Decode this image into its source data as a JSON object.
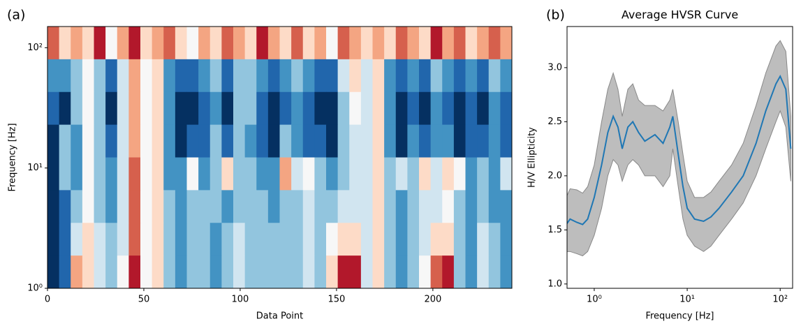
{
  "chart_data": [
    {
      "type": "heatmap",
      "panel_label": "(a)",
      "xlabel": "Data Point",
      "ylabel": "Frequency [Hz]",
      "xlim": [
        0,
        241
      ],
      "ylim": [
        1,
        150
      ],
      "log_y": true,
      "xticks": [
        0,
        50,
        100,
        150,
        200
      ],
      "yticks": [
        {
          "value": 1,
          "label": "10⁰"
        },
        {
          "value": 10,
          "label": "10¹"
        },
        {
          "value": 100,
          "label": "10²"
        }
      ],
      "colors": [
        "#053061",
        "#2166ac",
        "#4393c3",
        "#92c5de",
        "#d1e5f0",
        "#f7f7f7",
        "#fddbc7",
        "#f4a582",
        "#d6604d",
        "#b2182b",
        "#67001f"
      ],
      "z": [
        [
          0.8,
          0.6,
          0.7,
          0.6,
          0.9,
          0.5,
          0.7,
          0.9,
          0.6,
          0.7,
          0.8,
          0.6,
          0.5,
          0.7,
          0.6,
          0.8,
          0.7,
          0.6,
          0.9,
          0.7,
          0.6,
          0.8,
          0.6,
          0.7,
          0.5,
          0.8,
          0.7,
          0.6,
          0.7,
          0.6,
          0.8,
          0.7,
          0.6,
          0.9,
          0.7,
          0.8,
          0.6,
          0.7,
          0.8,
          0.7
        ],
        [
          0.2,
          0.2,
          0.3,
          0.5,
          0.3,
          0.1,
          0.4,
          0.7,
          0.5,
          0.55,
          0.2,
          0.1,
          0.1,
          0.2,
          0.3,
          0.1,
          0.3,
          0.3,
          0.2,
          0.1,
          0.2,
          0.3,
          0.2,
          0.1,
          0.1,
          0.4,
          0.6,
          0.45,
          0.55,
          0.2,
          0.1,
          0.2,
          0.1,
          0.3,
          0.2,
          0.1,
          0.2,
          0.1,
          0.3,
          0.2
        ],
        [
          0.1,
          0.05,
          0.3,
          0.5,
          0.3,
          0.05,
          0.4,
          0.7,
          0.5,
          0.55,
          0.2,
          0.05,
          0.05,
          0.1,
          0.2,
          0.05,
          0.3,
          0.3,
          0.1,
          0.05,
          0.1,
          0.2,
          0.1,
          0.05,
          0.05,
          0.3,
          0.5,
          0.45,
          0.55,
          0.2,
          0.05,
          0.1,
          0.05,
          0.2,
          0.1,
          0.05,
          0.1,
          0.05,
          0.2,
          0.1
        ],
        [
          0.05,
          0.3,
          0.2,
          0.5,
          0.3,
          0.1,
          0.4,
          0.7,
          0.5,
          0.55,
          0.25,
          0.05,
          0.1,
          0.1,
          0.3,
          0.1,
          0.3,
          0.2,
          0.1,
          0.05,
          0.3,
          0.2,
          0.1,
          0.1,
          0.05,
          0.3,
          0.4,
          0.45,
          0.55,
          0.2,
          0.05,
          0.2,
          0.1,
          0.2,
          0.2,
          0.05,
          0.1,
          0.1,
          0.2,
          0.1
        ],
        [
          0.05,
          0.35,
          0.2,
          0.5,
          0.3,
          0.2,
          0.4,
          0.75,
          0.5,
          0.55,
          0.25,
          0.2,
          0.5,
          0.2,
          0.3,
          0.6,
          0.3,
          0.3,
          0.2,
          0.2,
          0.65,
          0.4,
          0.5,
          0.3,
          0.2,
          0.3,
          0.4,
          0.45,
          0.55,
          0.3,
          0.4,
          0.3,
          0.55,
          0.4,
          0.6,
          0.5,
          0.2,
          0.3,
          0.2,
          0.4
        ],
        [
          0.05,
          0.1,
          0.3,
          0.5,
          0.35,
          0.2,
          0.45,
          0.75,
          0.5,
          0.55,
          0.3,
          0.2,
          0.3,
          0.3,
          0.3,
          0.2,
          0.35,
          0.3,
          0.3,
          0.2,
          0.3,
          0.3,
          0.4,
          0.3,
          0.3,
          0.4,
          0.4,
          0.45,
          0.55,
          0.3,
          0.2,
          0.3,
          0.4,
          0.4,
          0.5,
          0.3,
          0.2,
          0.3,
          0.2,
          0.2
        ],
        [
          0.05,
          0.1,
          0.4,
          0.55,
          0.4,
          0.3,
          0.45,
          0.8,
          0.5,
          0.55,
          0.3,
          0.2,
          0.3,
          0.3,
          0.2,
          0.3,
          0.4,
          0.3,
          0.3,
          0.3,
          0.3,
          0.3,
          0.4,
          0.3,
          0.5,
          0.6,
          0.6,
          0.45,
          0.55,
          0.3,
          0.2,
          0.3,
          0.4,
          0.6,
          0.6,
          0.3,
          0.2,
          0.4,
          0.3,
          0.2
        ],
        [
          0.05,
          0.1,
          0.7,
          0.55,
          0.4,
          0.3,
          0.5,
          0.85,
          0.5,
          0.6,
          0.3,
          0.2,
          0.3,
          0.3,
          0.2,
          0.3,
          0.4,
          0.3,
          0.3,
          0.3,
          0.3,
          0.3,
          0.4,
          0.3,
          0.6,
          0.9,
          0.85,
          0.45,
          0.55,
          0.3,
          0.2,
          0.3,
          0.5,
          0.8,
          0.9,
          0.3,
          0.2,
          0.4,
          0.3,
          0.2
        ]
      ]
    },
    {
      "type": "line",
      "panel_label": "(b)",
      "title": "Average HVSR Curve",
      "xlabel": "Frequency [Hz]",
      "ylabel": "H/V Ellipticity",
      "xlim": [
        0.51,
        136
      ],
      "ylim": [
        0.96,
        3.38
      ],
      "log_x": true,
      "xticks": [
        {
          "value": 1,
          "label": "10⁰"
        },
        {
          "value": 10,
          "label": "10¹"
        },
        {
          "value": 100,
          "label": "10²"
        }
      ],
      "yticks": [
        {
          "value": 1,
          "label": "1.0"
        },
        1.5,
        {
          "value": 2,
          "label": "2.0"
        },
        2.5,
        {
          "value": 3,
          "label": "3.0"
        }
      ],
      "color": "#1f77b4",
      "band_color": "#bdbdbd",
      "x": [
        0.5,
        0.55,
        0.65,
        0.75,
        0.85,
        1.0,
        1.2,
        1.4,
        1.6,
        1.8,
        2.0,
        2.3,
        2.6,
        3.0,
        3.5,
        4.5,
        5.5,
        6.5,
        7.0,
        8.0,
        9.0,
        10,
        12,
        15,
        18,
        22,
        30,
        40,
        55,
        70,
        90,
        100,
        115,
        130
      ],
      "values": [
        1.55,
        1.6,
        1.57,
        1.55,
        1.6,
        1.8,
        2.1,
        2.4,
        2.55,
        2.45,
        2.25,
        2.45,
        2.5,
        2.4,
        2.32,
        2.38,
        2.3,
        2.45,
        2.55,
        2.2,
        1.9,
        1.7,
        1.6,
        1.58,
        1.62,
        1.7,
        1.85,
        2.0,
        2.3,
        2.6,
        2.85,
        2.92,
        2.8,
        2.25
      ],
      "lower": [
        1.3,
        1.3,
        1.28,
        1.26,
        1.3,
        1.45,
        1.7,
        2.0,
        2.15,
        2.1,
        1.95,
        2.1,
        2.15,
        2.1,
        2.0,
        2.0,
        1.9,
        2.0,
        2.25,
        1.9,
        1.6,
        1.45,
        1.35,
        1.3,
        1.35,
        1.45,
        1.6,
        1.75,
        2.0,
        2.25,
        2.5,
        2.6,
        2.45,
        1.95
      ],
      "upper": [
        1.8,
        1.88,
        1.87,
        1.84,
        1.9,
        2.1,
        2.5,
        2.8,
        2.95,
        2.8,
        2.55,
        2.8,
        2.85,
        2.7,
        2.65,
        2.65,
        2.6,
        2.7,
        2.8,
        2.5,
        2.2,
        1.95,
        1.8,
        1.8,
        1.85,
        1.95,
        2.1,
        2.3,
        2.65,
        2.95,
        3.2,
        3.25,
        3.15,
        2.55
      ]
    }
  ]
}
